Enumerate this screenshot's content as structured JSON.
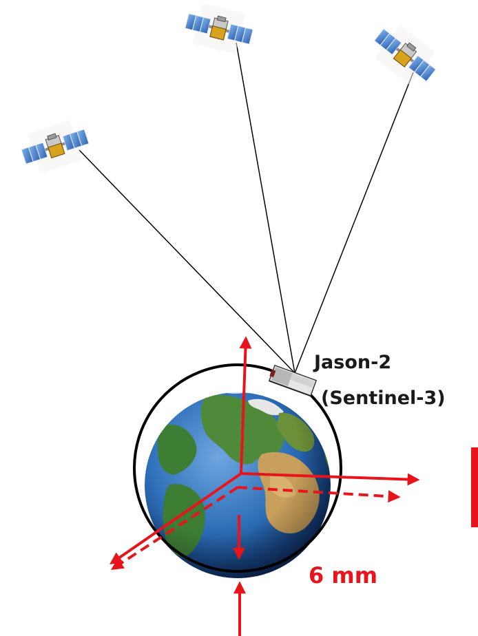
{
  "labels": {
    "altimetry_satellite": "Jason-2",
    "altimetry_satellite_alt": "(Sentinel-3)",
    "offset": "6 mm"
  },
  "colors": {
    "offset_red": "#e8141b",
    "orbit_ring": "#000000",
    "link_line": "#000000",
    "solar_panel": "#3f7fd0",
    "ocean": "#2d6fb8",
    "land": "#4f8a3a"
  },
  "icons": {
    "gnss_satellite": "gnss-satellite-icon",
    "altimetry_satellite": "altimetry-satellite-icon",
    "earth": "earth-globe-icon"
  }
}
